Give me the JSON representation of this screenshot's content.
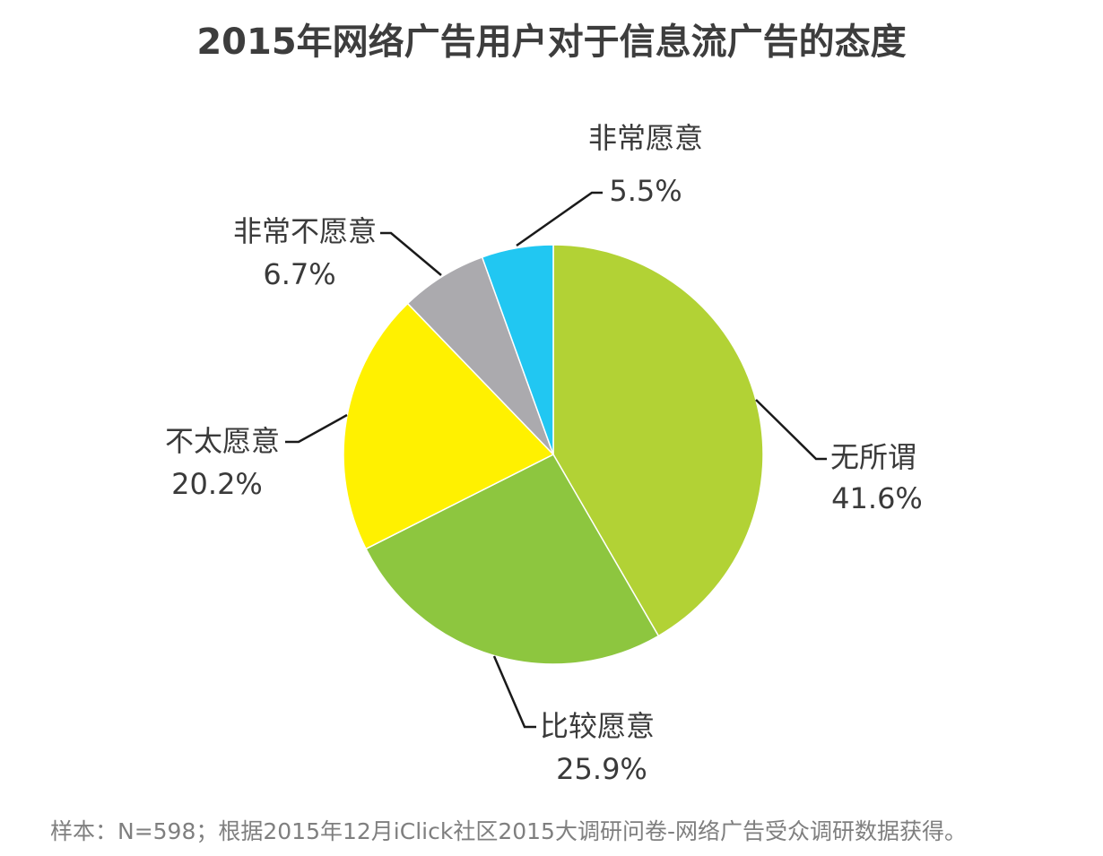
{
  "title": "2015年网络广告用户对于信息流广告的态度",
  "chart_data": {
    "type": "pie",
    "title": "2015年网络广告用户对于信息流广告的态度",
    "slices": [
      {
        "label": "无所谓",
        "value": 41.6,
        "display": "41.6%",
        "color": "#b2d235"
      },
      {
        "label": "比较愿意",
        "value": 25.9,
        "display": "25.9%",
        "color": "#8dc63f"
      },
      {
        "label": "不太愿意",
        "value": 20.2,
        "display": "20.2%",
        "color": "#fff100"
      },
      {
        "label": "非常不愿意",
        "value": 6.7,
        "display": "6.7%",
        "color": "#abaaae"
      },
      {
        "label": "非常愿意",
        "value": 5.5,
        "display": "5.5%",
        "color": "#21c7f2"
      }
    ],
    "start": "12 o'clock",
    "direction": "clockwise",
    "legend": "none"
  },
  "footnote": "样本：N=598；根据2015年12月iClick社区2015大调研问卷-网络广告受众调研数据获得。"
}
